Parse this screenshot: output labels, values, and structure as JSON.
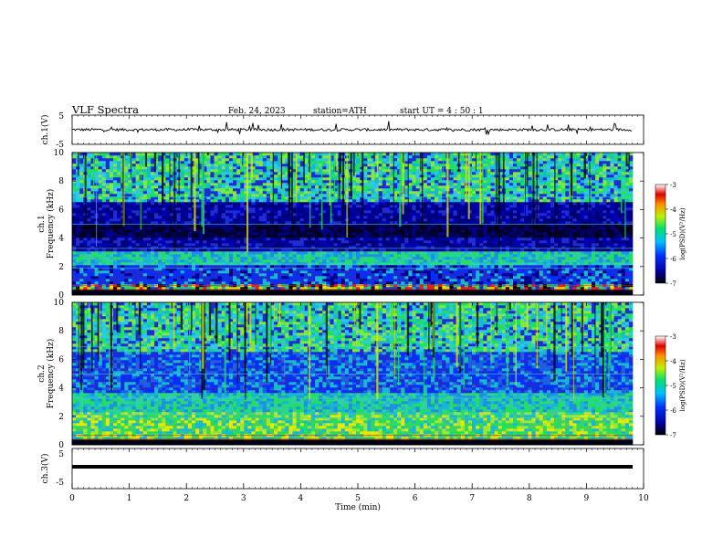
{
  "header": {
    "title": "VLF  Spectra",
    "date": "Feb. 24, 2023",
    "station": "station=ATH",
    "start": "start  UT  =   4  : 50 : 1"
  },
  "chart_data": [
    {
      "type": "line",
      "panel": "ch1-waveform",
      "ylabel": "ch.1(V)",
      "ylim": [
        -5,
        5
      ],
      "yticks": [
        "5",
        "-5"
      ],
      "xlim": [
        0,
        10
      ],
      "baseline": 0,
      "note_values": "noisy waveform around 0 V with spikes up to ~+2 V and ~-3 V"
    },
    {
      "type": "heatmap",
      "panel": "ch1-spectrogram",
      "ylabel_channel": "ch.1",
      "ylabel": "Frequency  (kHz)",
      "ylim": [
        0,
        10
      ],
      "yticks": [
        "0",
        "2",
        "4",
        "6",
        "8",
        "10"
      ],
      "xlim": [
        0,
        9.8
      ],
      "colorbar": {
        "label": "log(PSD)(V²/Hz)",
        "range": [
          -7,
          -3
        ],
        "ticks": [
          "-3",
          "-4",
          "-5",
          "-6",
          "-7"
        ]
      },
      "bands": [
        {
          "from": 0,
          "to": 0.3,
          "level": "black"
        },
        {
          "from": 0.3,
          "to": 0.8,
          "level": "mixed-high"
        },
        {
          "from": 0.8,
          "to": 2.2,
          "level": "blue-mid"
        },
        {
          "from": 2.2,
          "to": 3.0,
          "level": "cyan"
        },
        {
          "from": 3.0,
          "to": 4.0,
          "level": "dark-blue"
        },
        {
          "from": 4.0,
          "to": 5.0,
          "level": "black-blue"
        },
        {
          "from": 5.0,
          "to": 6.5,
          "level": "dark-blue"
        },
        {
          "from": 6.5,
          "to": 10,
          "level": "cyan-green"
        }
      ]
    },
    {
      "type": "heatmap",
      "panel": "ch2-spectrogram",
      "ylabel_channel": "ch.2",
      "ylabel": "Frequency  (kHz)",
      "ylim": [
        0,
        10
      ],
      "yticks": [
        "0",
        "2",
        "4",
        "6",
        "8",
        "10"
      ],
      "xlim": [
        0,
        9.8
      ],
      "colorbar": {
        "label": "log(PSD)(V²/Hz)",
        "range": [
          -7,
          -3
        ],
        "ticks": [
          "-3",
          "-4",
          "-5",
          "-6",
          "-7"
        ]
      },
      "bands": [
        {
          "from": 0,
          "to": 0.3,
          "level": "black"
        },
        {
          "from": 0.3,
          "to": 2.4,
          "level": "green-yellow"
        },
        {
          "from": 2.4,
          "to": 3.6,
          "level": "cyan"
        },
        {
          "from": 3.6,
          "to": 6.5,
          "level": "blue"
        },
        {
          "from": 6.5,
          "to": 10,
          "level": "cyan-green"
        }
      ]
    },
    {
      "type": "line",
      "panel": "ch3-waveform",
      "ylabel": "ch.3(V)",
      "ylim": [
        -5,
        5
      ],
      "yticks": [
        "5",
        "-5"
      ],
      "xlim": [
        0,
        10
      ],
      "baseline": -2,
      "xlabel": "Time  (min)",
      "xticks": [
        "0",
        "1",
        "2",
        "3",
        "4",
        "5",
        "6",
        "7",
        "8",
        "9",
        "10"
      ]
    }
  ],
  "colors": {
    "frame": "#000000",
    "black": "#000000",
    "darkblue": "#00008c",
    "blue": "#1e2cd6",
    "cyan": "#18b8d0",
    "green": "#20e060",
    "yellow": "#e8e800",
    "red": "#e02020"
  }
}
